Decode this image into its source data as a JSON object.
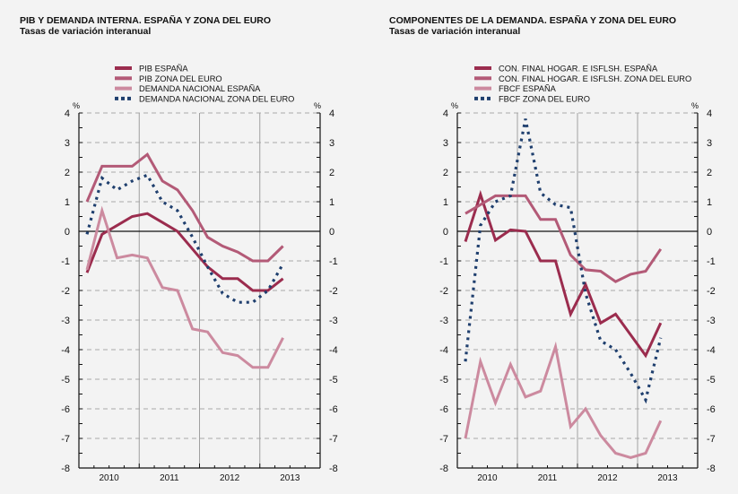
{
  "chart_data": [
    {
      "type": "line",
      "title": "PIB Y DEMANDA INTERNA. ESPAÑA Y ZONA DEL EURO",
      "subtitle": "Tasas de variación interanual",
      "xlabel": "",
      "ylabel": "%",
      "ylim": [
        -8,
        4
      ],
      "yticks": [
        4,
        3,
        2,
        1,
        0,
        -1,
        -2,
        -3,
        -4,
        -5,
        -6,
        -7,
        -8
      ],
      "ytick_labels": [
        "4",
        "3",
        "2",
        "1",
        "0",
        "-1",
        "-2",
        "-3",
        "-4",
        "-5",
        "-6",
        "-7",
        "-8"
      ],
      "x_categories": [
        "2010",
        "2011",
        "2012",
        "2013"
      ],
      "x": [
        "2010Q1",
        "2010Q2",
        "2010Q3",
        "2010Q4",
        "2011Q1",
        "2011Q2",
        "2011Q3",
        "2011Q4",
        "2012Q1",
        "2012Q2",
        "2012Q3",
        "2012Q4",
        "2013Q1",
        "2013Q2"
      ],
      "grid": true,
      "legend": "top-center",
      "series": [
        {
          "name": "PIB ESPAÑA",
          "style": "solid",
          "color": "#9b2c4e",
          "values": [
            -1.4,
            -0.1,
            0.2,
            0.5,
            0.6,
            0.3,
            0.0,
            -0.6,
            -1.2,
            -1.6,
            -1.6,
            -2.0,
            -2.0,
            -1.6
          ]
        },
        {
          "name": "PIB ZONA DEL EURO",
          "style": "solid",
          "color": "#b35a77",
          "values": [
            1.0,
            2.2,
            2.2,
            2.2,
            2.6,
            1.7,
            1.4,
            0.7,
            -0.2,
            -0.5,
            -0.7,
            -1.0,
            -1.0,
            -0.5
          ]
        },
        {
          "name": "DEMANDA NACIONAL ESPAÑA",
          "style": "solid",
          "color": "#cc8a9f",
          "values": [
            -1.3,
            0.7,
            -0.9,
            -0.8,
            -0.9,
            -1.9,
            -2.0,
            -3.3,
            -3.4,
            -4.1,
            -4.2,
            -4.6,
            -4.6,
            -3.6
          ]
        },
        {
          "name": "DEMANDA NACIONAL ZONA DEL EURO",
          "style": "dotted",
          "color": "#1f3f6e",
          "values": [
            -0.1,
            1.8,
            1.4,
            1.7,
            1.9,
            1.0,
            0.7,
            -0.2,
            -1.2,
            -2.1,
            -2.4,
            -2.4,
            -2.0,
            -1.1
          ]
        }
      ]
    },
    {
      "type": "line",
      "title": "COMPONENTES DE LA DEMANDA. ESPAÑA Y ZONA DEL EURO",
      "subtitle": "Tasas de variación interanual",
      "xlabel": "",
      "ylabel": "%",
      "ylim": [
        -8,
        4
      ],
      "yticks": [
        4,
        3,
        2,
        1,
        0,
        -1,
        -2,
        -3,
        -4,
        -5,
        -6,
        -7,
        -8
      ],
      "ytick_labels": [
        "4",
        "3",
        "2",
        "1",
        "0",
        "-1",
        "-2",
        "-3",
        "-4",
        "-5",
        "-6",
        "-7",
        "-8"
      ],
      "x_categories": [
        "2010",
        "2011",
        "2012",
        "2013"
      ],
      "x": [
        "2010Q1",
        "2010Q2",
        "2010Q3",
        "2010Q4",
        "2011Q1",
        "2011Q2",
        "2011Q3",
        "2011Q4",
        "2012Q1",
        "2012Q2",
        "2012Q3",
        "2012Q4",
        "2013Q1",
        "2013Q2"
      ],
      "grid": true,
      "legend": "top-center",
      "series": [
        {
          "name": "CON. FINAL HOGAR. E ISFLSH. ESPAÑA",
          "style": "solid",
          "color": "#9b2c4e",
          "values": [
            -0.35,
            1.25,
            -0.3,
            0.05,
            0.0,
            -1.0,
            -1.0,
            -2.8,
            -1.8,
            -3.1,
            -2.8,
            -3.5,
            -4.2,
            -3.1
          ]
        },
        {
          "name": "CON. FINAL HOGAR. E ISFLSH. ZONA DEL EURO",
          "style": "solid",
          "color": "#b35a77",
          "values": [
            0.6,
            0.9,
            1.2,
            1.2,
            1.2,
            0.4,
            0.4,
            -0.8,
            -1.3,
            -1.35,
            -1.7,
            -1.45,
            -1.35,
            -0.6
          ]
        },
        {
          "name": "FBCF ESPAÑA",
          "style": "solid",
          "color": "#cc8a9f",
          "values": [
            -7.0,
            -4.4,
            -5.8,
            -4.5,
            -5.6,
            -5.4,
            -3.9,
            -6.6,
            -6.0,
            -6.9,
            -7.5,
            -7.65,
            -7.5,
            -6.4
          ]
        },
        {
          "name": "FBCF ZONA DEL EURO",
          "style": "dotted",
          "color": "#1f3f6e",
          "values": [
            -4.4,
            0.2,
            1.0,
            1.2,
            3.8,
            1.3,
            0.9,
            0.8,
            -2.1,
            -3.7,
            -4.0,
            -4.8,
            -5.7,
            -3.6
          ]
        }
      ]
    }
  ]
}
